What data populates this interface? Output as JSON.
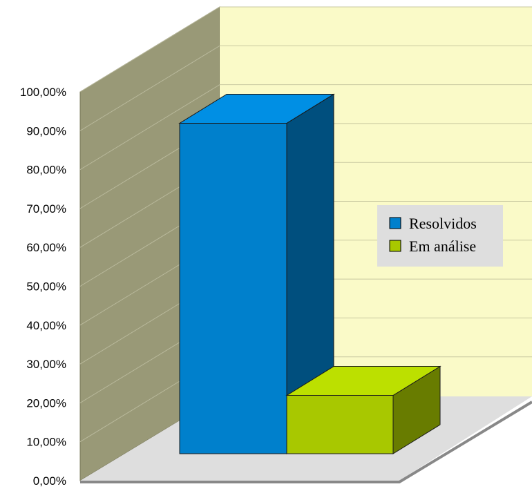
{
  "chart_data": {
    "type": "bar",
    "title": "",
    "xlabel": "",
    "ylabel": "",
    "ylim": [
      0,
      100
    ],
    "y_ticks": [
      "0,00%",
      "10,00%",
      "20,00%",
      "30,00%",
      "40,00%",
      "50,00%",
      "60,00%",
      "70,00%",
      "80,00%",
      "90,00%",
      "100,00%"
    ],
    "categories": [
      "Resolvidos",
      "Em análise"
    ],
    "series": [
      {
        "name": "Resolvidos",
        "values": [
          85,
          null
        ],
        "color": "#0080cc"
      },
      {
        "name": "Em análise",
        "values": [
          null,
          15
        ],
        "color": "#a8c800"
      }
    ],
    "grid": true,
    "legend_position": "right",
    "three_d": true
  },
  "legend": {
    "items": [
      {
        "label": "Resolvidos",
        "color": "#0080cc"
      },
      {
        "label": "Em análise",
        "color": "#a8c800"
      }
    ]
  },
  "colors": {
    "back_wall": "#fafac8",
    "side_wall": "#999977",
    "floor": "#dedede",
    "legend_bg": "#dedede"
  }
}
